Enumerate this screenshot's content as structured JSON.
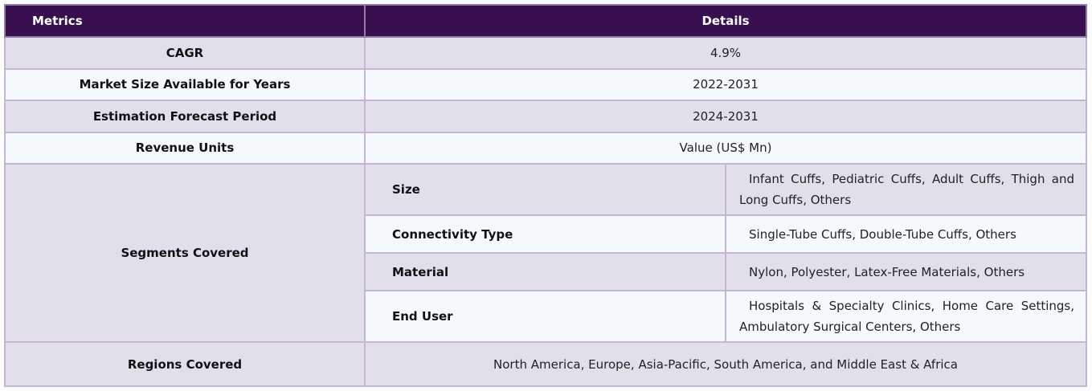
{
  "header": {
    "metrics": "Metrics",
    "details": "Details"
  },
  "rows": [
    {
      "label": "CAGR",
      "value": "4.9%"
    },
    {
      "label": "Market Size Available for Years",
      "value": "2022-2031"
    },
    {
      "label": "Estimation Forecast Period",
      "value": "2024-2031"
    },
    {
      "label": "Revenue Units",
      "value": "Value (US$ Mn)"
    }
  ],
  "segments": {
    "label": "Segments Covered",
    "items": [
      {
        "name": "Size",
        "value": "Infant Cuffs, Pediatric Cuffs, Adult Cuffs, Thigh and Long Cuffs, Others"
      },
      {
        "name": "Connectivity Type",
        "value": "Single-Tube Cuffs, Double-Tube Cuffs, Others"
      },
      {
        "name": "Material",
        "value": "Nylon, Polyester, Latex-Free Materials, Others"
      },
      {
        "name": "End User",
        "value": "Hospitals & Specialty Clinics, Home Care Settings, Ambulatory Surgical Centers, Others"
      }
    ]
  },
  "regions": {
    "label": "Regions Covered",
    "value": "North America, Europe, Asia-Pacific, South America, and Middle East & Africa"
  }
}
